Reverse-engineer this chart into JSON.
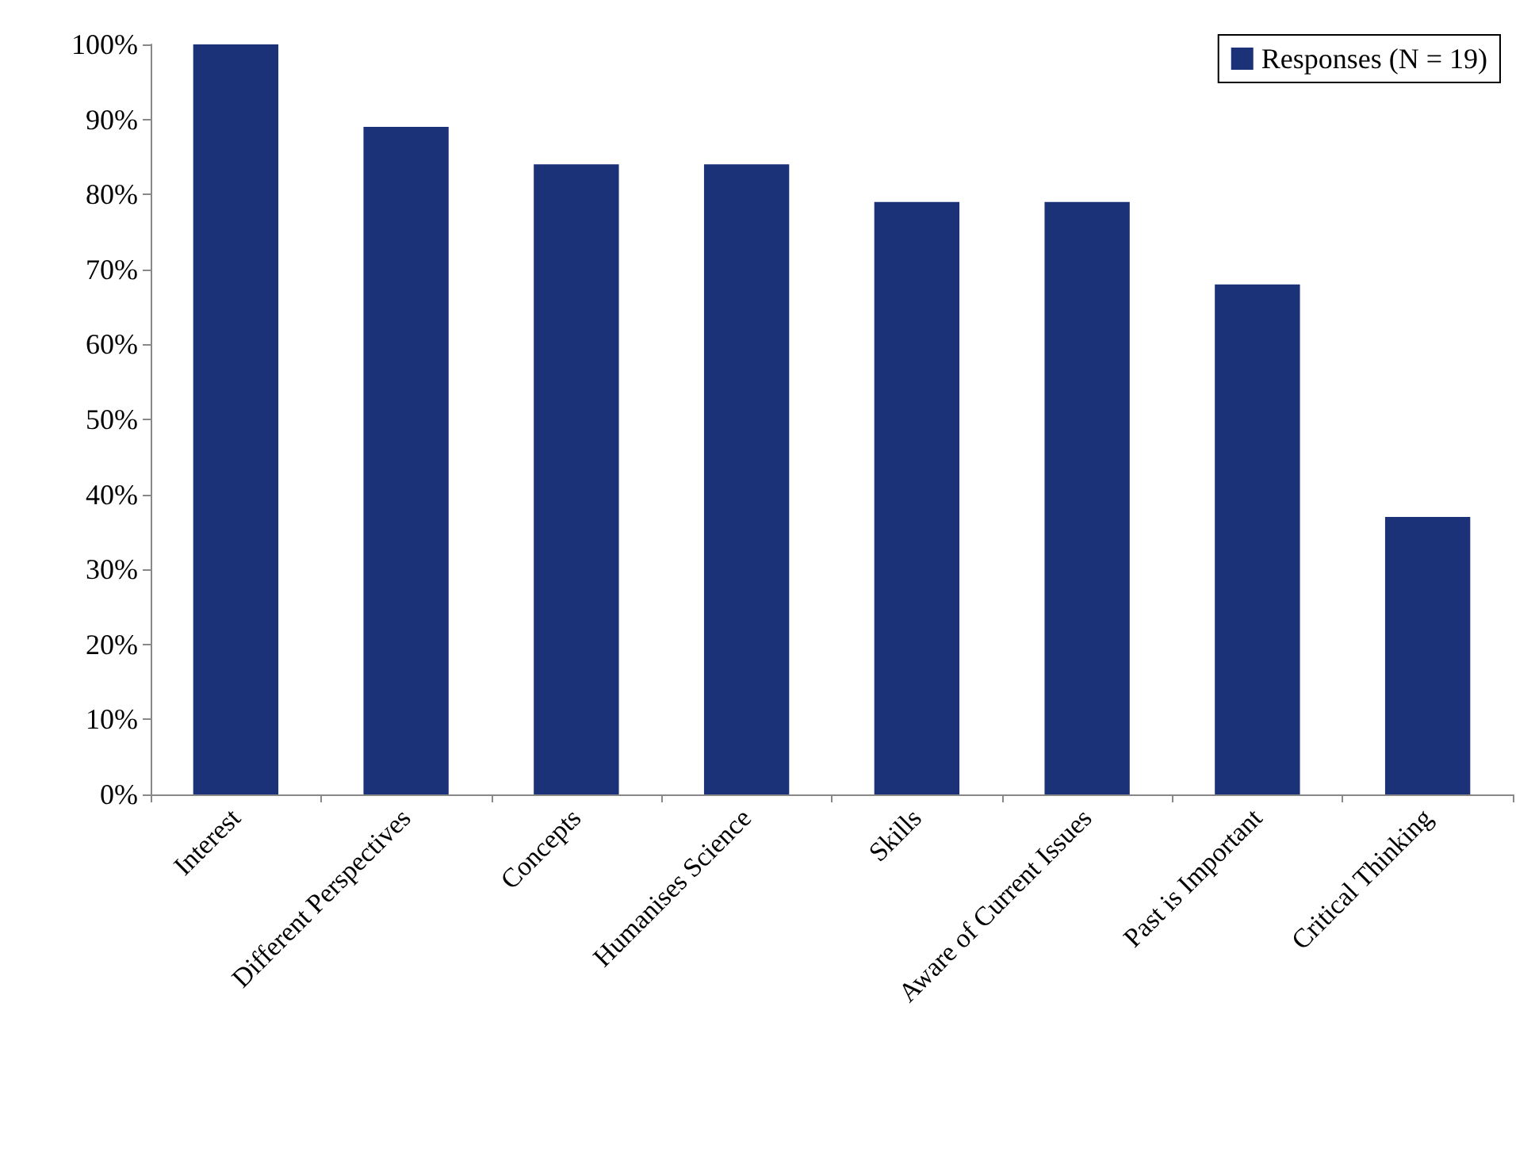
{
  "chart_data": {
    "type": "bar",
    "categories": [
      "Interest",
      "Different Perspectives",
      "Concepts",
      "Humanises Science",
      "Skills",
      "Aware of Current Issues",
      "Past is Important",
      "Critical Thinking"
    ],
    "series": [
      {
        "name": "Responses (N = 19)",
        "color": "#1c3278",
        "values": [
          100,
          89,
          84,
          84,
          79,
          79,
          68,
          37
        ]
      }
    ],
    "ylim": [
      0,
      100
    ],
    "yticks": [
      {
        "value": 0,
        "label": "0%"
      },
      {
        "value": 10,
        "label": "10%"
      },
      {
        "value": 20,
        "label": "20%"
      },
      {
        "value": 30,
        "label": "30%"
      },
      {
        "value": 40,
        "label": "40%"
      },
      {
        "value": 50,
        "label": "50%"
      },
      {
        "value": 60,
        "label": "60%"
      },
      {
        "value": 70,
        "label": "70%"
      },
      {
        "value": 80,
        "label": "80%"
      },
      {
        "value": 90,
        "label": "90%"
      },
      {
        "value": 100,
        "label": "100%"
      }
    ],
    "grid": false,
    "legend": "top right"
  }
}
